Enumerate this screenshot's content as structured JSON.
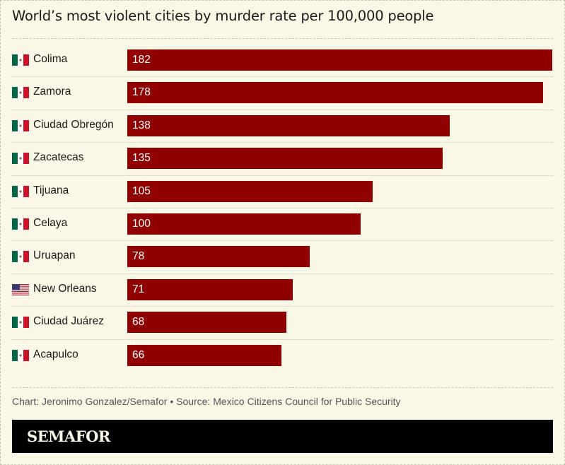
{
  "colors": {
    "bar": "#900000",
    "background": "#fbf7e6",
    "mexico_green": "#006847",
    "mexico_red": "#ce1126",
    "us_blue": "#3c3b6e",
    "us_red": "#b22234"
  },
  "chart_data": {
    "type": "bar",
    "orientation": "horizontal",
    "title": "World’s most violent cities by murder rate per 100,000 people",
    "categories": [
      "Colima",
      "Zamora",
      "Ciudad Obregón",
      "Zacatecas",
      "Tijuana",
      "Celaya",
      "Uruapan",
      "New Orleans",
      "Ciudad Juárez",
      "Acapulco"
    ],
    "flags": [
      "mexico-flag-icon",
      "mexico-flag-icon",
      "mexico-flag-icon",
      "mexico-flag-icon",
      "mexico-flag-icon",
      "mexico-flag-icon",
      "mexico-flag-icon",
      "us-flag-icon",
      "mexico-flag-icon",
      "mexico-flag-icon"
    ],
    "values": [
      182,
      178,
      138,
      135,
      105,
      100,
      78,
      71,
      68,
      66
    ],
    "xlim": [
      0,
      182
    ],
    "grid": false,
    "data_labels": true
  },
  "credit": "Chart: Jeronimo Gonzalez/Semafor • Source: Mexico Citizens Council for Public Security",
  "footer": {
    "logo": "SEMAFOR"
  }
}
